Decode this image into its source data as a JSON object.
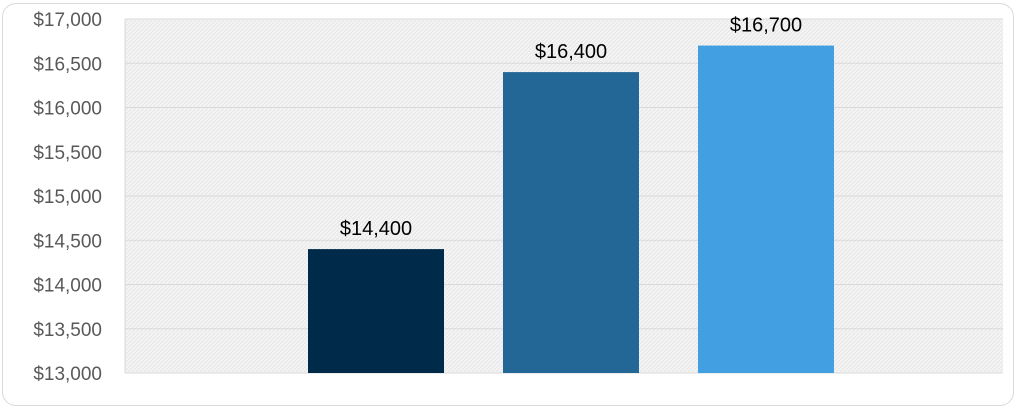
{
  "chart_data": {
    "type": "bar",
    "title": "",
    "xlabel": "",
    "ylabel": "",
    "categories": [
      "",
      "",
      ""
    ],
    "values": [
      14400,
      16400,
      16700
    ],
    "data_labels": [
      "$14,400",
      "$16,400",
      "$16,700"
    ],
    "ylim": [
      13000,
      17000
    ],
    "y_ticks": [
      13000,
      13500,
      14000,
      14500,
      15000,
      15500,
      16000,
      16500,
      17000
    ],
    "y_tick_labels": [
      "$13,000",
      "$13,500",
      "$14,000",
      "$14,500",
      "$15,000",
      "$15,500",
      "$16,000",
      "$16,500",
      "$17,000"
    ],
    "bar_colors": [
      "#002a4a",
      "#236797",
      "#429fe2"
    ],
    "grid": true,
    "legend": "none",
    "plot_background": "#f2f2f2",
    "grid_color": "#d9d9d9"
  }
}
